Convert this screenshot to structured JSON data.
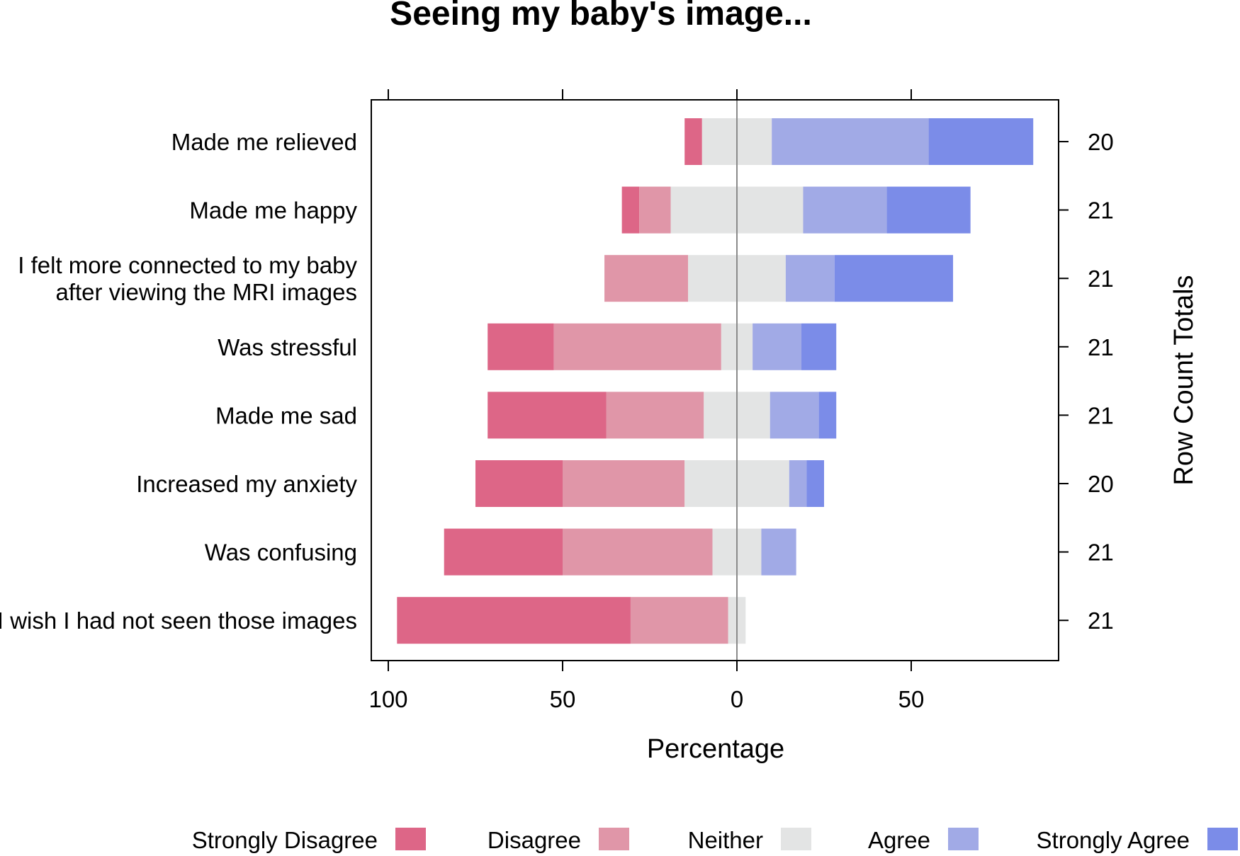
{
  "chart_data": {
    "type": "bar",
    "subtype": "diverging-stacked-likert",
    "title": "Seeing my baby's image...",
    "xlabel": "Percentage",
    "right_axis_label": "Row Count Totals",
    "xlim": [
      -100,
      92
    ],
    "xticks": [
      -100,
      -50,
      0,
      50
    ],
    "xtick_labels": [
      "100",
      "50",
      "0",
      "50"
    ],
    "grid": false,
    "legend_position": "bottom",
    "levels": [
      "Strongly Disagree",
      "Disagree",
      "Neither",
      "Agree",
      "Strongly Agree"
    ],
    "colors": [
      "#DD6687",
      "#E096A8",
      "#E3E4E4",
      "#A1AAE6",
      "#7B8CE8"
    ],
    "categories": [
      "Made me relieved",
      "Made me happy",
      "I felt more connected to my baby\nafter viewing the MRI images",
      "Was stressful",
      "Made me sad",
      "Increased my anxiety",
      "Was confusing",
      "I wish I had not seen those images"
    ],
    "row_totals": [
      "20",
      "21",
      "21",
      "21",
      "21",
      "20",
      "21",
      "21"
    ],
    "series": [
      {
        "name": "Strongly Disagree",
        "values": [
          5,
          5,
          0,
          19,
          34,
          25,
          34,
          67
        ]
      },
      {
        "name": "Disagree",
        "values": [
          0,
          9,
          24,
          48,
          28,
          35,
          43,
          28
        ]
      },
      {
        "name": "Neither",
        "values": [
          20,
          38,
          28,
          9,
          19,
          30,
          14,
          5
        ]
      },
      {
        "name": "Agree",
        "values": [
          45,
          24,
          14,
          14,
          14,
          5,
          10,
          0
        ]
      },
      {
        "name": "Strongly Agree",
        "values": [
          30,
          24,
          34,
          10,
          5,
          5,
          0,
          0
        ]
      }
    ]
  }
}
